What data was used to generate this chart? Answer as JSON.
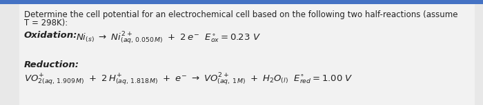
{
  "bg_color": "#e8e8e8",
  "panel_color": "#f2f2f2",
  "text_color": "#222222",
  "blue_bar_color": "#4472c4",
  "title_line1": "Determine the cell potential for an electrochemical cell based on the following two half-reactions (assume",
  "title_line2": "T = 298K):",
  "font_size_title": 8.5,
  "font_size_eq": 9.5,
  "font_size_label": 9.5,
  "font_size_small": 7.5
}
